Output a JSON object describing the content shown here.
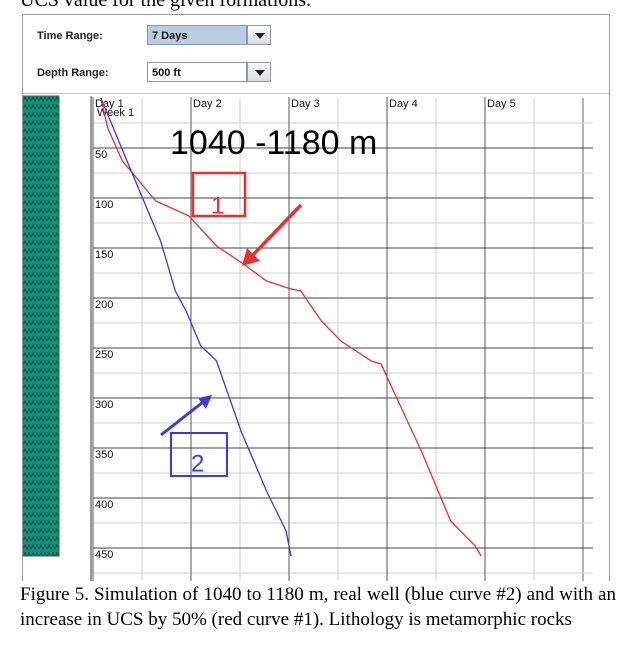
{
  "header_text": "UCS value for the given formations.",
  "controls": [
    {
      "label": "Time Range:",
      "value": "7 Days"
    },
    {
      "label": "Depth Range:",
      "value": "500 ft"
    }
  ],
  "chart_data": {
    "type": "line",
    "xlim": [
      0,
      5.1
    ],
    "xticks": [
      {
        "value": 0,
        "label": "Day 1"
      },
      {
        "value": 1,
        "label": "Day 2"
      },
      {
        "value": 2,
        "label": "Day 3"
      },
      {
        "value": 3,
        "label": "Day 4"
      },
      {
        "value": 4,
        "label": "Day 5"
      }
    ],
    "week_label": "Week 1",
    "ylim": [
      0,
      480
    ],
    "yticks": [
      50,
      100,
      150,
      200,
      250,
      300,
      350,
      400,
      450
    ],
    "inverted_y": true,
    "grid": true,
    "series": [
      {
        "color": "#e83030",
        "x": [
          0.08,
          0.15,
          0.3,
          0.64,
          0.98,
          1.26,
          1.52,
          1.77,
          2.02,
          2.12,
          2.33,
          2.53,
          2.84,
          2.94,
          3.09,
          3.35,
          3.65,
          3.9,
          3.96
        ],
        "values": [
          0,
          30,
          63,
          103,
          118,
          148,
          165,
          183,
          191,
          193,
          223,
          243,
          263,
          266,
          298,
          353,
          423,
          448,
          458
        ]
      },
      {
        "color": "#3a3ae0",
        "x": [
          0.08,
          0.39,
          0.69,
          0.84,
          0.95,
          1.1,
          1.21,
          1.26,
          1.51,
          1.77,
          1.97,
          2.02
        ],
        "values": [
          0,
          73,
          143,
          193,
          213,
          248,
          258,
          263,
          333,
          393,
          433,
          458
        ]
      }
    ],
    "annotations": [
      "1040 -1180 m",
      "1",
      "2"
    ]
  },
  "caption": "Figure 5. Simulation of 1040 to 1180 m, real well (blue curve #2) and with an increase in UCS by 50% (red curve #1). Lithology is metamorphic rocks"
}
